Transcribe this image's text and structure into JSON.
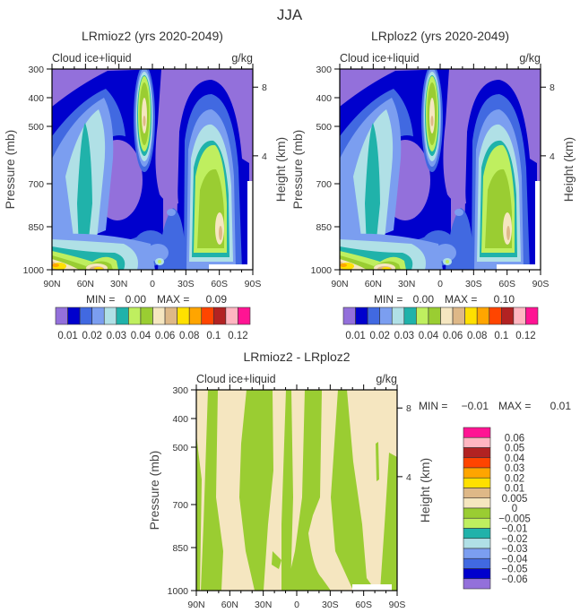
{
  "figure_title": "JJA",
  "colors": [
    "#9370DB",
    "#0000CD",
    "#4169E1",
    "#7B9EF0",
    "#B0E0E6",
    "#20B2AA",
    "#BFEF5F",
    "#9ACD32",
    "#F5E6C0",
    "#DEB887",
    "#FFE000",
    "#FFA500",
    "#FF4500",
    "#B22222",
    "#FFB6C1",
    "#FF1493"
  ],
  "chart_data": [
    {
      "type": "heatmap",
      "title": "LRmioz2 (yrs 2020-2049)",
      "subtitle": "Cloud ice+liquid",
      "units": "g/kg",
      "xlabel": "",
      "ylabel": "Pressure (mb)",
      "ylabel_right": "Height (km)",
      "x_ticks": [
        "90N",
        "60N",
        "30N",
        "0",
        "30S",
        "60S",
        "90S"
      ],
      "y_ticks": [
        300,
        400,
        500,
        700,
        850,
        1000
      ],
      "y_ticks_right": [
        8,
        4
      ],
      "ylim": [
        1000,
        300
      ],
      "min_label": "MIN =",
      "min_value": "0.00",
      "max_label": "MAX =",
      "max_value": "0.09",
      "colorbar_labels": [
        "0.01",
        "0.02",
        "0.03",
        "0.04",
        "0.06",
        "0.08",
        "0.1",
        "0.12"
      ]
    },
    {
      "type": "heatmap",
      "title": "LRploz2 (yrs 2020-2049)",
      "subtitle": "Cloud ice+liquid",
      "units": "g/kg",
      "xlabel": "",
      "ylabel": "Pressure (mb)",
      "ylabel_right": "Height (km)",
      "x_ticks": [
        "90N",
        "60N",
        "30N",
        "0",
        "30S",
        "60S",
        "90S"
      ],
      "y_ticks": [
        300,
        400,
        500,
        700,
        850,
        1000
      ],
      "y_ticks_right": [
        8,
        4
      ],
      "ylim": [
        1000,
        300
      ],
      "min_label": "MIN =",
      "min_value": "0.00",
      "max_label": "MAX =",
      "max_value": "0.10",
      "colorbar_labels": [
        "0.01",
        "0.02",
        "0.03",
        "0.04",
        "0.06",
        "0.08",
        "0.1",
        "0.12"
      ]
    },
    {
      "type": "heatmap",
      "title": "LRmioz2 - LRploz2",
      "subtitle": "Cloud ice+liquid",
      "units": "g/kg",
      "xlabel": "",
      "ylabel": "Pressure (mb)",
      "ylabel_right": "Height (km)",
      "x_ticks": [
        "90N",
        "60N",
        "30N",
        "0",
        "30S",
        "60S",
        "90S"
      ],
      "y_ticks": [
        300,
        400,
        500,
        700,
        850,
        1000
      ],
      "y_ticks_right": [
        8,
        4
      ],
      "ylim": [
        1000,
        300
      ],
      "min_label": "MIN =",
      "min_value": "−0.01",
      "max_label": "MAX =",
      "max_value": "0.01",
      "colorbar_labels": [
        "0.06",
        "0.05",
        "0.04",
        "0.03",
        "0.02",
        "0.01",
        "0.005",
        "0",
        "−0.005",
        "−0.01",
        "−0.02",
        "−0.03",
        "−0.04",
        "−0.05",
        "−0.06"
      ]
    }
  ]
}
